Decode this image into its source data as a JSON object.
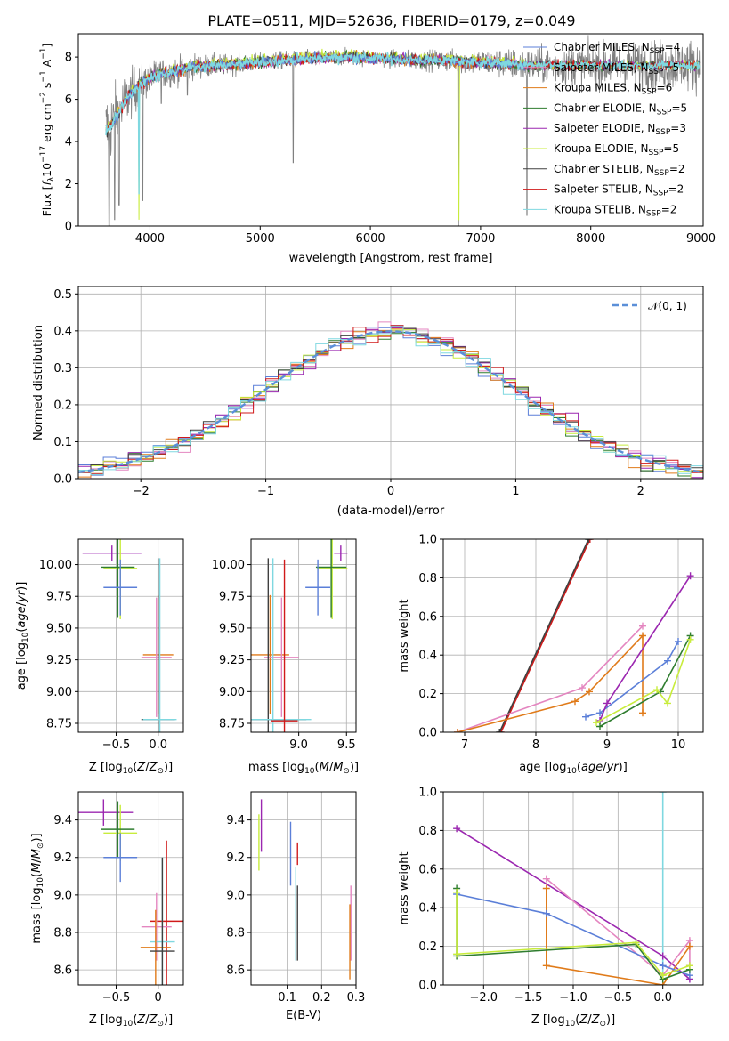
{
  "title": "PLATE=0511, MJD=52636, FIBERID=0179, z=0.049",
  "colors": {
    "chabrier_miles": "#5b7fd8",
    "salpeter_miles": "#e486c0",
    "kroupa_miles": "#e07b1a",
    "chabrier_elodie": "#2f7d2f",
    "salpeter_elodie": "#9b27b0",
    "kroupa_elodie": "#c8ec3c",
    "chabrier_stelib": "#404040",
    "salpeter_stelib": "#d01a1a",
    "kroupa_stelib": "#7fd8e0",
    "data": "#808080",
    "normal": "#5b8fd8"
  },
  "chart_data": [
    {
      "id": "spectrum",
      "type": "line",
      "xlabel": "wavelength [Angstrom, rest frame]",
      "ylabel": "Flux [f_λ10^-17 erg cm^-2 s^-1 A^-1]",
      "xlim": [
        3350,
        9020
      ],
      "ylim": [
        0,
        9.1
      ],
      "xticks": [
        4000,
        5000,
        6000,
        7000,
        8000,
        9000
      ],
      "yticks": [
        0,
        2,
        4,
        6,
        8
      ],
      "grid": false,
      "legend_position": "right",
      "legend": [
        {
          "label": "Chabrier MILES, N",
          "sub": "SSP",
          "suffix": "=4",
          "color_key": "chabrier_miles"
        },
        {
          "label": "Salpeter MILES, N",
          "sub": "SSP",
          "suffix": "=5",
          "color_key": "salpeter_miles"
        },
        {
          "label": "Kroupa MILES, N",
          "sub": "SSP",
          "suffix": "=6",
          "color_key": "kroupa_miles"
        },
        {
          "label": "Chabrier ELODIE, N",
          "sub": "SSP",
          "suffix": "=5",
          "color_key": "chabrier_elodie"
        },
        {
          "label": "Salpeter ELODIE, N",
          "sub": "SSP",
          "suffix": "=3",
          "color_key": "salpeter_elodie"
        },
        {
          "label": "Kroupa ELODIE, N",
          "sub": "SSP",
          "suffix": "=5",
          "color_key": "kroupa_elodie"
        },
        {
          "label": "Chabrier STELIB, N",
          "sub": "SSP",
          "suffix": "=2",
          "color_key": "chabrier_stelib"
        },
        {
          "label": "Salpeter STELIB, N",
          "sub": "SSP",
          "suffix": "=2",
          "color_key": "salpeter_stelib"
        },
        {
          "label": "Kroupa STELIB, N",
          "sub": "SSP",
          "suffix": "=2",
          "color_key": "kroupa_stelib"
        }
      ],
      "continuum": [
        [
          3600,
          4.5
        ],
        [
          3650,
          4.8
        ],
        [
          3700,
          5.2
        ],
        [
          3750,
          5.7
        ],
        [
          3800,
          6.1
        ],
        [
          3850,
          6.4
        ],
        [
          3900,
          6.6
        ],
        [
          3950,
          6.8
        ],
        [
          4000,
          7.0
        ],
        [
          4100,
          7.2
        ],
        [
          4200,
          7.3
        ],
        [
          4300,
          7.4
        ],
        [
          4400,
          7.55
        ],
        [
          4600,
          7.6
        ],
        [
          4800,
          7.65
        ],
        [
          5000,
          7.75
        ],
        [
          5200,
          7.85
        ],
        [
          5400,
          7.9
        ],
        [
          5600,
          7.95
        ],
        [
          5800,
          8.0
        ],
        [
          6000,
          7.95
        ],
        [
          6200,
          7.9
        ],
        [
          6400,
          7.85
        ],
        [
          6600,
          7.85
        ],
        [
          6800,
          7.8
        ],
        [
          7000,
          7.75
        ],
        [
          7200,
          7.7
        ],
        [
          7400,
          7.6
        ]
      ],
      "noise_levels": [
        [
          3600,
          2.5
        ],
        [
          3800,
          1.6
        ],
        [
          4000,
          1.0
        ],
        [
          4500,
          0.7
        ],
        [
          5000,
          0.55
        ],
        [
          5500,
          0.5
        ],
        [
          6000,
          0.5
        ],
        [
          6500,
          0.6
        ],
        [
          7000,
          0.8
        ],
        [
          7400,
          1.0
        ],
        [
          8000,
          1.3
        ],
        [
          8500,
          1.5
        ],
        [
          8900,
          1.6
        ]
      ],
      "dips": [
        [
          3630,
          0.0
        ],
        [
          3680,
          0.3
        ],
        [
          3720,
          1.0
        ],
        [
          3934,
          1.2
        ],
        [
          4102,
          5.8
        ],
        [
          4340,
          6.2
        ],
        [
          5300,
          3.0
        ],
        [
          6800,
          0.0
        ],
        [
          7420,
          0.5
        ]
      ]
    },
    {
      "id": "residuals",
      "type": "histogram",
      "xlabel": "(data-model)/error",
      "ylabel": "Normed distribution",
      "xlim": [
        -2.5,
        2.5
      ],
      "ylim": [
        0,
        0.52
      ],
      "xticks": [
        -2,
        -1,
        0,
        1,
        2
      ],
      "xtick_labels": [
        "−2",
        "−1",
        "0",
        "1",
        "2"
      ],
      "yticks": [
        0.0,
        0.1,
        0.2,
        0.3,
        0.4,
        0.5
      ],
      "grid": true,
      "legend_position": "top-right",
      "legend": "𝒩(0, 1)",
      "bin_width": 0.1,
      "bin_start": -2.5,
      "series": [
        {
          "color_key": "chabrier_miles",
          "offset": -0.02
        },
        {
          "color_key": "salpeter_miles",
          "offset": 0.015
        },
        {
          "color_key": "kroupa_miles",
          "offset": 0.025
        },
        {
          "color_key": "chabrier_elodie",
          "offset": 0.0
        },
        {
          "color_key": "salpeter_elodie",
          "offset": 0.03
        },
        {
          "color_key": "kroupa_elodie",
          "offset": 0.01
        },
        {
          "color_key": "chabrier_stelib",
          "offset": -0.01
        },
        {
          "color_key": "salpeter_stelib",
          "offset": 0.02
        },
        {
          "color_key": "kroupa_stelib",
          "offset": -0.015
        }
      ]
    },
    {
      "id": "age_vs_z",
      "type": "scatter",
      "xlabel": "Z [log10(Z/Z⊙)]",
      "ylabel": "age  [log10(age/yr)]",
      "xlim": [
        -0.95,
        0.3
      ],
      "ylim": [
        8.68,
        10.2
      ],
      "xticks": [
        -0.5,
        0.0
      ],
      "yticks": [
        8.75,
        9.0,
        9.25,
        9.5,
        9.75,
        10.0
      ],
      "grid": true,
      "points": [
        {
          "color_key": "salpeter_elodie",
          "x": -0.55,
          "y": 10.09,
          "xerr": 0.35,
          "yerr": 0.06
        },
        {
          "color_key": "kroupa_elodie",
          "x": -0.45,
          "y": 9.97,
          "xerr": 0.2,
          "yerr": 0.4
        },
        {
          "color_key": "chabrier_elodie",
          "x": -0.48,
          "y": 9.98,
          "xerr": 0.2,
          "yerr": 0.4
        },
        {
          "color_key": "chabrier_miles",
          "x": -0.45,
          "y": 9.82,
          "xerr": 0.2,
          "yerr": 0.22
        },
        {
          "color_key": "kroupa_miles",
          "x": 0.0,
          "y": 9.29,
          "xerr": 0.18,
          "yerr": 0.47
        },
        {
          "color_key": "salpeter_miles",
          "x": -0.02,
          "y": 9.27,
          "xerr": 0.18,
          "yerr": 0.47
        },
        {
          "color_key": "chabrier_stelib",
          "x": 0.0,
          "y": 8.78,
          "xerr": 0.2,
          "yerr": 1.27
        },
        {
          "color_key": "kroupa_stelib",
          "x": 0.02,
          "y": 8.78,
          "xerr": 0.2,
          "yerr": 1.27
        }
      ]
    },
    {
      "id": "age_vs_mass",
      "type": "scatter",
      "xlabel": "mass [log10(M/M⊙)]",
      "ylabel": "",
      "xlim": [
        8.5,
        9.6
      ],
      "ylim": [
        8.68,
        10.2
      ],
      "xticks": [
        9.0,
        9.5
      ],
      "yticks": [
        8.75,
        9.0,
        9.25,
        9.5,
        9.75,
        10.0
      ],
      "grid": true,
      "points": [
        {
          "color_key": "salpeter_elodie",
          "x": 9.44,
          "y": 10.09,
          "xerr": 0.07,
          "yerr": 0.06
        },
        {
          "color_key": "kroupa_elodie",
          "x": 9.35,
          "y": 9.97,
          "xerr": 0.16,
          "yerr": 0.4
        },
        {
          "color_key": "chabrier_elodie",
          "x": 9.34,
          "y": 9.98,
          "xerr": 0.16,
          "yerr": 0.4
        },
        {
          "color_key": "chabrier_miles",
          "x": 9.2,
          "y": 9.82,
          "xerr": 0.13,
          "yerr": 0.22
        },
        {
          "color_key": "kroupa_miles",
          "x": 8.7,
          "y": 9.29,
          "xerr": 0.2,
          "yerr": 0.47
        },
        {
          "color_key": "salpeter_miles",
          "x": 8.82,
          "y": 9.27,
          "xerr": 0.18,
          "yerr": 0.47
        },
        {
          "color_key": "chabrier_stelib",
          "x": 8.68,
          "y": 8.78,
          "xerr": 0.4,
          "yerr": 1.27
        },
        {
          "color_key": "kroupa_stelib",
          "x": 8.73,
          "y": 8.78,
          "xerr": 0.4,
          "yerr": 1.27
        },
        {
          "color_key": "salpeter_stelib",
          "x": 8.85,
          "y": 8.77,
          "xerr": 0.14,
          "yerr": 1.27
        }
      ]
    },
    {
      "id": "mass_weight_vs_age",
      "type": "line",
      "xlabel": "age  [log10(age/yr)]",
      "ylabel": "mass weight",
      "xlim": [
        6.7,
        10.35
      ],
      "ylim": [
        0,
        1.0
      ],
      "xticks": [
        7,
        8,
        9,
        10
      ],
      "yticks": [
        0.0,
        0.2,
        0.4,
        0.6,
        0.8,
        1.0
      ],
      "grid": true,
      "series": [
        {
          "color_key": "kroupa_stelib",
          "x": [
            7.5,
            8.75
          ],
          "y": [
            0.0,
            1.0
          ]
        },
        {
          "color_key": "salpeter_stelib",
          "x": [
            7.51,
            8.76
          ],
          "y": [
            0.0,
            1.0
          ]
        },
        {
          "color_key": "chabrier_stelib",
          "x": [
            7.49,
            8.74
          ],
          "y": [
            0.0,
            1.0
          ]
        },
        {
          "color_key": "salpeter_miles",
          "x": [
            6.9,
            8.65,
            9.5
          ],
          "y": [
            0.0,
            0.23,
            0.55
          ]
        },
        {
          "color_key": "kroupa_miles",
          "x": [
            6.9,
            8.55,
            8.75,
            9.5,
            9.5
          ],
          "y": [
            0.0,
            0.16,
            0.21,
            0.5,
            0.1
          ]
        },
        {
          "color_key": "chabrier_miles",
          "x": [
            8.7,
            8.9,
            9.85,
            10.0
          ],
          "y": [
            0.08,
            0.1,
            0.37,
            0.47
          ]
        },
        {
          "color_key": "salpeter_elodie",
          "x": [
            8.9,
            9.0,
            10.17
          ],
          "y": [
            0.06,
            0.15,
            0.81
          ]
        },
        {
          "color_key": "chabrier_elodie",
          "x": [
            8.9,
            9.75,
            10.17
          ],
          "y": [
            0.03,
            0.21,
            0.5
          ]
        },
        {
          "color_key": "kroupa_elodie",
          "x": [
            8.85,
            9.7,
            9.85,
            10.17
          ],
          "y": [
            0.05,
            0.22,
            0.15,
            0.48
          ]
        }
      ]
    },
    {
      "id": "mass_vs_z",
      "type": "scatter",
      "xlabel": "Z [log10(Z/Z⊙)]",
      "ylabel": "mass [log10(M/M⊙)]",
      "xlim": [
        -0.95,
        0.3
      ],
      "ylim": [
        8.52,
        9.55
      ],
      "xticks": [
        -0.5,
        0.0
      ],
      "yticks": [
        8.6,
        8.8,
        9.0,
        9.2,
        9.4
      ],
      "grid": true,
      "points": [
        {
          "color_key": "salpeter_elodie",
          "x": -0.65,
          "y": 9.44,
          "xerr": 0.35,
          "yerr": 0.07
        },
        {
          "color_key": "kroupa_elodie",
          "x": -0.45,
          "y": 9.33,
          "xerr": 0.2,
          "yerr": 0.15
        },
        {
          "color_key": "chabrier_elodie",
          "x": -0.48,
          "y": 9.35,
          "xerr": 0.2,
          "yerr": 0.15
        },
        {
          "color_key": "chabrier_miles",
          "x": -0.45,
          "y": 9.2,
          "xerr": 0.2,
          "yerr": 0.13
        },
        {
          "color_key": "salpeter_stelib",
          "x": 0.1,
          "y": 8.86,
          "xerr": 0.2,
          "yerr": 0.43
        },
        {
          "color_key": "salpeter_miles",
          "x": -0.02,
          "y": 8.83,
          "xerr": 0.18,
          "yerr": 0.18
        },
        {
          "color_key": "kroupa_stelib",
          "x": 0.05,
          "y": 8.75,
          "xerr": 0.15,
          "yerr": 0.45
        },
        {
          "color_key": "kroupa_miles",
          "x": -0.03,
          "y": 8.72,
          "xerr": 0.18,
          "yerr": 0.2
        },
        {
          "color_key": "chabrier_stelib",
          "x": 0.05,
          "y": 8.7,
          "xerr": 0.15,
          "yerr": 0.5
        }
      ]
    },
    {
      "id": "mass_vs_ebv",
      "type": "scatter",
      "xlabel": "E(B-V)",
      "ylabel": "",
      "xlim": [
        -0.005,
        0.3
      ],
      "ylim": [
        8.52,
        9.55
      ],
      "xticks": [
        0.1,
        0.2,
        0.3
      ],
      "yticks": [
        8.6,
        8.8,
        9.0,
        9.2,
        9.4
      ],
      "grid": true,
      "points": [
        {
          "color_key": "salpeter_elodie",
          "x": 0.025,
          "y": 9.37,
          "xerr": 0.0,
          "yerr": 0.14
        },
        {
          "color_key": "kroupa_elodie",
          "x": 0.018,
          "y": 9.28,
          "xerr": 0.0,
          "yerr": 0.15
        },
        {
          "color_key": "chabrier_miles",
          "x": 0.11,
          "y": 9.22,
          "xerr": 0.0,
          "yerr": 0.17
        },
        {
          "color_key": "salpeter_stelib",
          "x": 0.13,
          "y": 9.22,
          "xerr": 0.0,
          "yerr": 0.06
        },
        {
          "color_key": "kroupa_stelib",
          "x": 0.125,
          "y": 8.9,
          "xerr": 0.0,
          "yerr": 0.25
        },
        {
          "color_key": "chabrier_stelib",
          "x": 0.13,
          "y": 8.85,
          "xerr": 0.0,
          "yerr": 0.2
        },
        {
          "color_key": "salpeter_miles",
          "x": 0.285,
          "y": 8.85,
          "xerr": 0.0,
          "yerr": 0.2
        },
        {
          "color_key": "kroupa_miles",
          "x": 0.282,
          "y": 8.75,
          "xerr": 0.0,
          "yerr": 0.2
        }
      ]
    },
    {
      "id": "mass_weight_vs_z",
      "type": "line",
      "xlabel": "Z [log10(Z/Z⊙)]",
      "ylabel": "mass weight",
      "xlim": [
        -2.45,
        0.45
      ],
      "ylim": [
        0,
        1.0
      ],
      "xticks": [
        -2.0,
        -1.5,
        -1.0,
        -0.5,
        0.0
      ],
      "xtick_labels": [
        "−2.0",
        "−1.5",
        "−1.0",
        "−0.5",
        "0.0"
      ],
      "yticks": [
        0.0,
        0.2,
        0.4,
        0.6,
        0.8,
        1.0
      ],
      "grid": true,
      "series": [
        {
          "color_key": "kroupa_stelib",
          "x": [
            0.0,
            0.0
          ],
          "y": [
            0.0,
            1.0
          ]
        },
        {
          "color_key": "salpeter_elodie",
          "x": [
            -2.3,
            0.0,
            0.3
          ],
          "y": [
            0.81,
            0.15,
            0.03
          ]
        },
        {
          "color_key": "salpeter_miles",
          "x": [
            -1.3,
            0.0,
            0.3,
            0.3
          ],
          "y": [
            0.55,
            0.05,
            0.23,
            0.1
          ]
        },
        {
          "color_key": "kroupa_miles",
          "x": [
            -1.3,
            -1.3,
            0.0,
            0.3
          ],
          "y": [
            0.5,
            0.1,
            0.0,
            0.2
          ]
        },
        {
          "color_key": "chabrier_miles",
          "x": [
            -2.3,
            -1.3,
            0.0,
            0.3
          ],
          "y": [
            0.47,
            0.37,
            0.1,
            0.05
          ]
        },
        {
          "color_key": "chabrier_elodie",
          "x": [
            -2.3,
            -2.3,
            -0.3,
            0.0,
            0.3
          ],
          "y": [
            0.5,
            0.15,
            0.21,
            0.03,
            0.08
          ]
        },
        {
          "color_key": "kroupa_elodie",
          "x": [
            -2.3,
            -2.3,
            -0.3,
            0.0,
            0.3
          ],
          "y": [
            0.48,
            0.16,
            0.22,
            0.05,
            0.1
          ]
        }
      ]
    }
  ]
}
